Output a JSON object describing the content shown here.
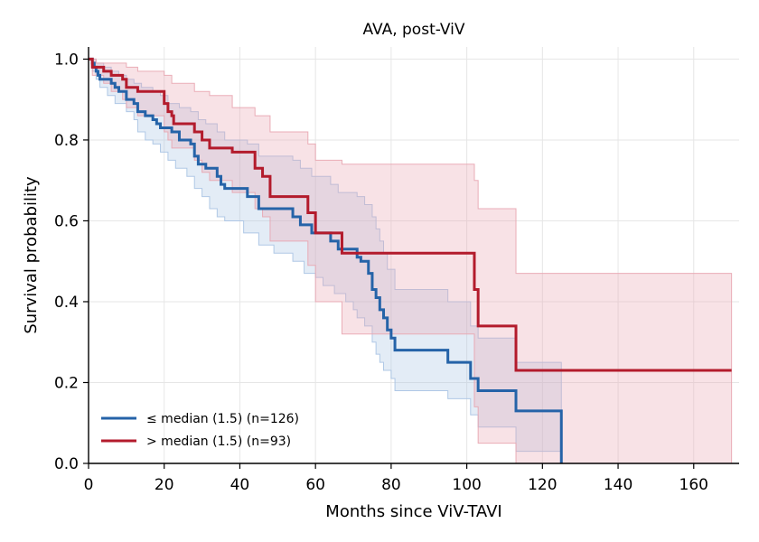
{
  "chart_data": {
    "type": "line",
    "title": "AVA, post-ViV",
    "xlabel": "Months since ViV-TAVI",
    "ylabel": "Survival probability",
    "xlim": [
      0,
      172
    ],
    "ylim": [
      0,
      1.03
    ],
    "xticks": [
      0,
      20,
      40,
      60,
      80,
      100,
      120,
      140,
      160
    ],
    "yticks": [
      0.0,
      0.2,
      0.4,
      0.6,
      0.8,
      1.0
    ],
    "xtick_labels": [
      "0",
      "20",
      "40",
      "60",
      "80",
      "100",
      "120",
      "140",
      "160"
    ],
    "ytick_labels": [
      "0.0",
      "0.2",
      "0.4",
      "0.6",
      "0.8",
      "1.0"
    ],
    "grid": true,
    "legend_position": "lower-left",
    "series": [
      {
        "name": "≤ median (1.5) (n=126)",
        "color": "#2563a8",
        "band_color": "#a9c3e3",
        "steps": [
          [
            0,
            1.0
          ],
          [
            1,
            0.99
          ],
          [
            1.5,
            0.98
          ],
          [
            2,
            0.97
          ],
          [
            2.5,
            0.96
          ],
          [
            3,
            0.95
          ],
          [
            6,
            0.94
          ],
          [
            7,
            0.93
          ],
          [
            8,
            0.92
          ],
          [
            10,
            0.9
          ],
          [
            12,
            0.89
          ],
          [
            13,
            0.87
          ],
          [
            15,
            0.86
          ],
          [
            17,
            0.85
          ],
          [
            18,
            0.84
          ],
          [
            19,
            0.83
          ],
          [
            22,
            0.82
          ],
          [
            24,
            0.8
          ],
          [
            27,
            0.79
          ],
          [
            28,
            0.76
          ],
          [
            29,
            0.74
          ],
          [
            31,
            0.73
          ],
          [
            34,
            0.71
          ],
          [
            35,
            0.69
          ],
          [
            36,
            0.68
          ],
          [
            42,
            0.66
          ],
          [
            45,
            0.63
          ],
          [
            54,
            0.61
          ],
          [
            56,
            0.59
          ],
          [
            59,
            0.57
          ],
          [
            64,
            0.55
          ],
          [
            66,
            0.53
          ],
          [
            71,
            0.51
          ],
          [
            72,
            0.5
          ],
          [
            74,
            0.47
          ],
          [
            75,
            0.43
          ],
          [
            76,
            0.41
          ],
          [
            77,
            0.38
          ],
          [
            78,
            0.36
          ],
          [
            79,
            0.33
          ],
          [
            80,
            0.31
          ],
          [
            81,
            0.28
          ],
          [
            95,
            0.25
          ],
          [
            101,
            0.21
          ],
          [
            103,
            0.18
          ],
          [
            113,
            0.13
          ],
          [
            125,
            0.0
          ]
        ],
        "end": 125,
        "lower_steps": [
          [
            0,
            1.0
          ],
          [
            1,
            0.97
          ],
          [
            2,
            0.95
          ],
          [
            3,
            0.93
          ],
          [
            5,
            0.91
          ],
          [
            7,
            0.89
          ],
          [
            10,
            0.87
          ],
          [
            12,
            0.85
          ],
          [
            13,
            0.82
          ],
          [
            15,
            0.8
          ],
          [
            17,
            0.79
          ],
          [
            19,
            0.77
          ],
          [
            21,
            0.75
          ],
          [
            23,
            0.73
          ],
          [
            26,
            0.71
          ],
          [
            28,
            0.68
          ],
          [
            30,
            0.66
          ],
          [
            32,
            0.63
          ],
          [
            34,
            0.61
          ],
          [
            36,
            0.6
          ],
          [
            41,
            0.57
          ],
          [
            45,
            0.54
          ],
          [
            49,
            0.52
          ],
          [
            54,
            0.5
          ],
          [
            57,
            0.47
          ],
          [
            60,
            0.46
          ],
          [
            62,
            0.44
          ],
          [
            65,
            0.42
          ],
          [
            68,
            0.4
          ],
          [
            70,
            0.38
          ],
          [
            71,
            0.36
          ],
          [
            73,
            0.34
          ],
          [
            75,
            0.3
          ],
          [
            76,
            0.27
          ],
          [
            77,
            0.25
          ],
          [
            78,
            0.23
          ],
          [
            80,
            0.21
          ],
          [
            81,
            0.18
          ],
          [
            95,
            0.16
          ],
          [
            101,
            0.12
          ],
          [
            103,
            0.09
          ],
          [
            113,
            0.03
          ],
          [
            125,
            0.0
          ]
        ],
        "upper_steps": [
          [
            0,
            1.0
          ],
          [
            2,
            0.99
          ],
          [
            4,
            0.98
          ],
          [
            6,
            0.97
          ],
          [
            8,
            0.96
          ],
          [
            10,
            0.95
          ],
          [
            12,
            0.94
          ],
          [
            14,
            0.93
          ],
          [
            17,
            0.92
          ],
          [
            19,
            0.91
          ],
          [
            21,
            0.89
          ],
          [
            24,
            0.88
          ],
          [
            27,
            0.87
          ],
          [
            29,
            0.85
          ],
          [
            31,
            0.84
          ],
          [
            34,
            0.82
          ],
          [
            36,
            0.8
          ],
          [
            42,
            0.79
          ],
          [
            45,
            0.76
          ],
          [
            54,
            0.75
          ],
          [
            56,
            0.73
          ],
          [
            59,
            0.71
          ],
          [
            64,
            0.69
          ],
          [
            66,
            0.67
          ],
          [
            71,
            0.66
          ],
          [
            73,
            0.64
          ],
          [
            75,
            0.61
          ],
          [
            76,
            0.58
          ],
          [
            77,
            0.55
          ],
          [
            78,
            0.52
          ],
          [
            79,
            0.48
          ],
          [
            81,
            0.43
          ],
          [
            95,
            0.4
          ],
          [
            101,
            0.34
          ],
          [
            103,
            0.31
          ],
          [
            113,
            0.25
          ],
          [
            125,
            0.25
          ]
        ]
      },
      {
        "name": "> median (1.5) (n=93)",
        "color": "#b31b2c",
        "band_color": "#e8a5b0",
        "steps": [
          [
            0,
            1.0
          ],
          [
            1,
            0.98
          ],
          [
            4,
            0.97
          ],
          [
            6,
            0.96
          ],
          [
            9,
            0.95
          ],
          [
            10,
            0.93
          ],
          [
            13,
            0.92
          ],
          [
            20,
            0.89
          ],
          [
            21,
            0.87
          ],
          [
            22,
            0.86
          ],
          [
            22.5,
            0.84
          ],
          [
            28,
            0.82
          ],
          [
            30,
            0.8
          ],
          [
            32,
            0.78
          ],
          [
            38,
            0.77
          ],
          [
            44,
            0.73
          ],
          [
            46,
            0.71
          ],
          [
            48,
            0.66
          ],
          [
            58,
            0.62
          ],
          [
            60,
            0.57
          ],
          [
            67,
            0.52
          ],
          [
            102,
            0.43
          ],
          [
            103,
            0.34
          ],
          [
            113,
            0.23
          ],
          [
            170,
            0.23
          ]
        ],
        "end": 170,
        "lower_steps": [
          [
            0,
            1.0
          ],
          [
            1,
            0.96
          ],
          [
            4,
            0.94
          ],
          [
            6,
            0.92
          ],
          [
            9,
            0.9
          ],
          [
            10,
            0.88
          ],
          [
            13,
            0.86
          ],
          [
            20,
            0.82
          ],
          [
            21,
            0.8
          ],
          [
            22,
            0.78
          ],
          [
            28,
            0.75
          ],
          [
            30,
            0.72
          ],
          [
            32,
            0.7
          ],
          [
            38,
            0.67
          ],
          [
            44,
            0.63
          ],
          [
            46,
            0.61
          ],
          [
            48,
            0.55
          ],
          [
            58,
            0.49
          ],
          [
            60,
            0.4
          ],
          [
            67,
            0.32
          ],
          [
            102,
            0.14
          ],
          [
            103,
            0.05
          ],
          [
            113,
            0.0
          ],
          [
            170,
            0.0
          ]
        ],
        "upper_steps": [
          [
            0,
            1.0
          ],
          [
            2,
            0.99
          ],
          [
            6,
            0.99
          ],
          [
            10,
            0.98
          ],
          [
            13,
            0.97
          ],
          [
            20,
            0.96
          ],
          [
            22,
            0.94
          ],
          [
            28,
            0.92
          ],
          [
            32,
            0.91
          ],
          [
            38,
            0.88
          ],
          [
            44,
            0.86
          ],
          [
            48,
            0.82
          ],
          [
            58,
            0.79
          ],
          [
            60,
            0.75
          ],
          [
            67,
            0.74
          ],
          [
            102,
            0.7
          ],
          [
            103,
            0.63
          ],
          [
            113,
            0.47
          ],
          [
            170,
            0.47
          ]
        ]
      }
    ]
  }
}
